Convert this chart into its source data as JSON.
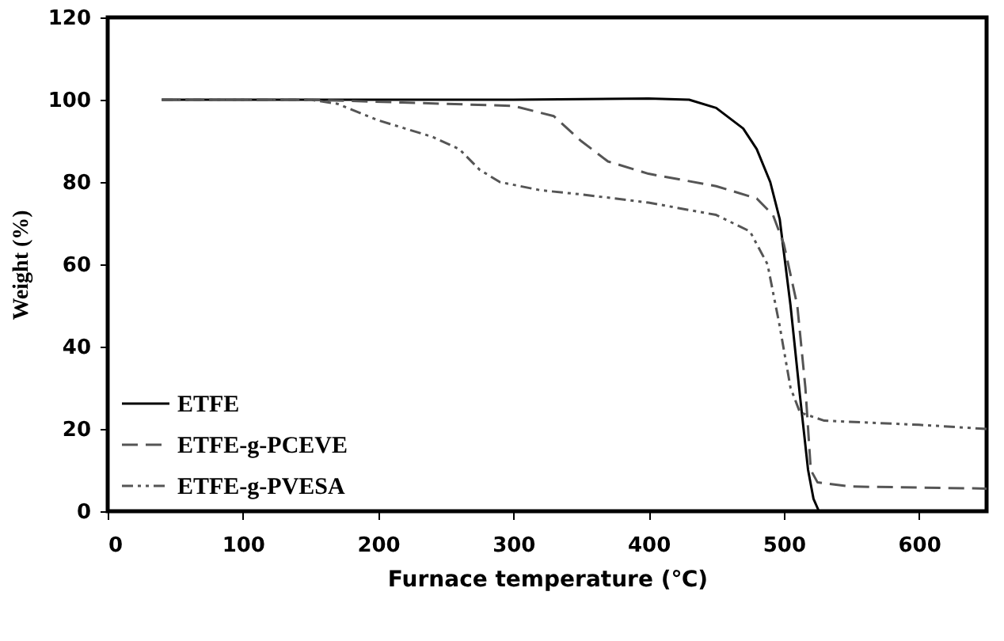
{
  "chart_data": {
    "type": "line",
    "xlabel": "Furnace temperature (℃)",
    "ylabel": "Weight (%)",
    "xlim": [
      0,
      650
    ],
    "ylim": [
      0,
      120
    ],
    "xticks": [
      0,
      100,
      200,
      300,
      400,
      500,
      600
    ],
    "yticks": [
      0,
      20,
      40,
      60,
      80,
      100,
      120
    ],
    "grid": false,
    "legend": "bottom left",
    "marker": "none",
    "series": [
      {
        "name": "ETFE",
        "color": "#000000",
        "line_style": "solid",
        "x": [
          40,
          100,
          200,
          300,
          400,
          430,
          450,
          470,
          480,
          490,
          497,
          505,
          512,
          518,
          522,
          526,
          650
        ],
        "values": [
          100,
          100,
          100,
          100,
          100.3,
          100,
          98,
          93,
          88,
          80,
          71,
          50,
          28,
          10,
          3,
          0,
          0
        ]
      },
      {
        "name": "ETFE-g-PCEVE",
        "color": "#555555",
        "line_style": "dashed",
        "x": [
          40,
          150,
          250,
          300,
          330,
          350,
          370,
          400,
          450,
          480,
          492,
          500,
          510,
          516,
          520,
          525,
          550,
          650
        ],
        "values": [
          100,
          100,
          99,
          98.5,
          96,
          90,
          85,
          82,
          79,
          76,
          72,
          65,
          50,
          30,
          10,
          7,
          6,
          5.5
        ]
      },
      {
        "name": "ETFE-g-PVESA",
        "color": "#555555",
        "line_style": "dotted",
        "x": [
          40,
          150,
          170,
          200,
          240,
          260,
          275,
          290,
          320,
          350,
          400,
          450,
          475,
          488,
          497,
          505,
          512,
          530,
          600,
          650
        ],
        "values": [
          100,
          100,
          99,
          95,
          91,
          88,
          83,
          80,
          78,
          77,
          75,
          72,
          68,
          60,
          45,
          30,
          24,
          22,
          21,
          20
        ]
      }
    ]
  }
}
